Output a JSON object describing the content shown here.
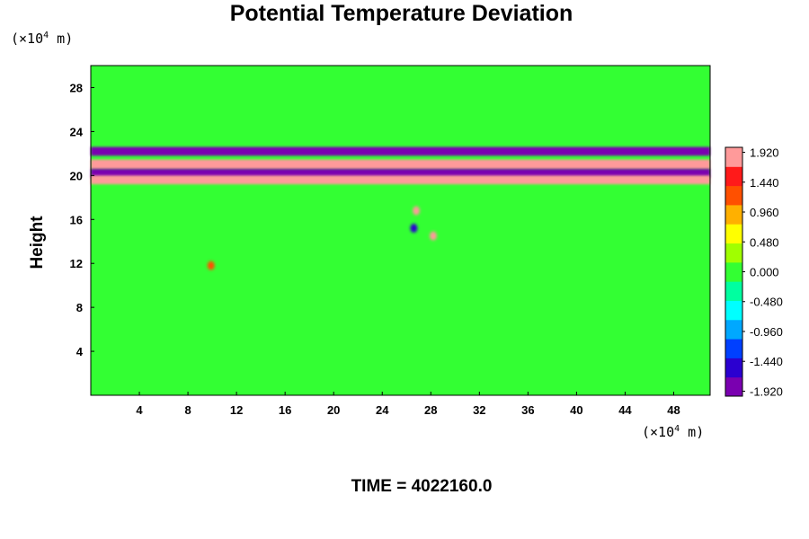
{
  "chart_data": {
    "type": "heatmap",
    "title": "Potential Temperature Deviation",
    "ylabel": "Height",
    "x_unit_prefix": "(×10",
    "x_unit_exp": "4",
    "x_unit_suffix": " m)",
    "y_unit_prefix": "(×10",
    "y_unit_exp": "4",
    "y_unit_suffix": " m)",
    "x_ticks": [
      4,
      8,
      12,
      16,
      20,
      24,
      28,
      32,
      36,
      40,
      44,
      48
    ],
    "y_ticks": [
      4,
      8,
      12,
      16,
      20,
      24,
      28
    ],
    "xlim": [
      0,
      51
    ],
    "ylim": [
      0,
      30
    ],
    "colorbar": {
      "range": [
        -2.0,
        2.0
      ],
      "tick_values": [
        1.92,
        1.44,
        0.96,
        0.48,
        0.0,
        -0.48,
        -0.96,
        -1.44,
        -1.92
      ],
      "tick_labels": [
        "1.920",
        "1.440",
        "0.960",
        "0.480",
        "0.000",
        "-0.480",
        "-0.960",
        "-1.440",
        "-1.920"
      ],
      "colors": [
        "#7a00b0",
        "#2b00d0",
        "#0040ff",
        "#00a8ff",
        "#00ffff",
        "#00ffa0",
        "#33ff33",
        "#a0ff00",
        "#ffff00",
        "#ffb000",
        "#ff5000",
        "#ff1a1a",
        "#ff9a9a"
      ]
    },
    "background_value": 0.05,
    "features": [
      {
        "name": "layer-y22",
        "y": 22.2,
        "thickness": 0.8,
        "value": -1.9
      },
      {
        "name": "layer-y21",
        "y": 21.0,
        "thickness": 0.9,
        "value": 1.8
      },
      {
        "name": "layer-y20",
        "y": 20.2,
        "thickness": 0.8,
        "value": -2.0
      },
      {
        "name": "layer-y19",
        "y": 19.6,
        "thickness": 0.8,
        "value": 1.9
      },
      {
        "name": "blob-a",
        "x": 26.8,
        "y": 16.8,
        "value": 1.9
      },
      {
        "name": "blob-b",
        "x": 26.6,
        "y": 15.2,
        "value": -1.4
      },
      {
        "name": "blob-c",
        "x": 28.2,
        "y": 14.5,
        "value": 1.7
      },
      {
        "name": "blob-d",
        "x": 9.9,
        "y": 11.8,
        "value": 1.2
      }
    ]
  },
  "footer": {
    "time_label": "TIME = 4022160.0"
  }
}
